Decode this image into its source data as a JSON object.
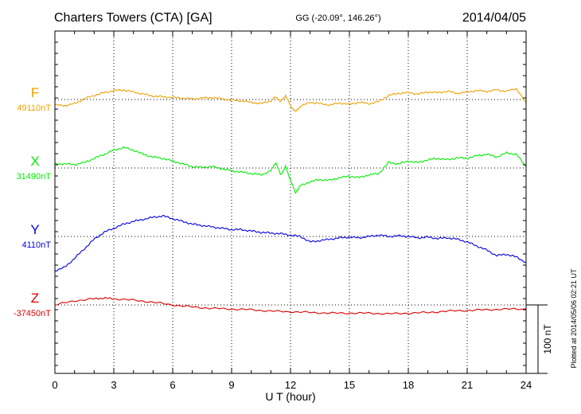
{
  "header": {
    "station": "Charters Towers (CTA)  [GA]",
    "coords": "GG (-20.09°, 146.26°)",
    "date": "2014/04/05"
  },
  "footer": {
    "plotted": "Plotted at 2014/05/06 02:21  UT"
  },
  "chart_data": {
    "type": "line",
    "xlabel": "U T (hour)",
    "ylabel": "",
    "xlim": [
      0,
      24
    ],
    "xticks": [
      0,
      3,
      6,
      9,
      12,
      15,
      18,
      21,
      24
    ],
    "tick_labels": [
      "0",
      "3",
      "6",
      "9",
      "12",
      "15",
      "18",
      "21",
      "24"
    ],
    "grid": true,
    "scale_bar_label": "100 nT",
    "scale_nT": 100,
    "series": [
      {
        "name": "F",
        "baseline_label": "49110nT",
        "baseline_nT": 49110,
        "color": "#f0a000",
        "x": [
          0,
          0.5,
          1,
          1.5,
          2,
          2.5,
          3,
          3.5,
          4,
          4.5,
          5,
          5.5,
          6,
          6.5,
          7,
          7.5,
          8,
          8.5,
          9,
          9.5,
          10,
          10.5,
          11,
          11.25,
          11.5,
          11.75,
          12,
          12.25,
          12.5,
          13,
          13.5,
          14,
          14.5,
          15,
          15.5,
          16,
          16.5,
          17,
          17.5,
          18,
          18.5,
          19,
          19.5,
          20,
          20.5,
          21,
          21.5,
          22,
          22.5,
          23,
          23.5,
          24
        ],
        "y": [
          -8,
          -9,
          -6,
          1,
          6,
          10,
          13,
          14,
          11,
          8,
          5,
          4,
          3,
          2,
          1,
          2,
          3,
          1,
          -1,
          -2,
          -4,
          -6,
          -2,
          4,
          -3,
          6,
          -9,
          -18,
          -10,
          -4,
          -6,
          -8,
          -5,
          -7,
          -4,
          -6,
          -3,
          6,
          9,
          10,
          8,
          11,
          10,
          12,
          9,
          11,
          13,
          12,
          14,
          12,
          16,
          -5
        ]
      },
      {
        "name": "X",
        "baseline_label": "31490nT",
        "baseline_nT": 31490,
        "color": "#00ee00",
        "x": [
          0,
          0.5,
          1,
          1.5,
          2,
          2.5,
          3,
          3.5,
          4,
          4.5,
          5,
          5.5,
          6,
          6.5,
          7,
          7.5,
          8,
          8.5,
          9,
          9.5,
          10,
          10.5,
          11,
          11.25,
          11.5,
          11.75,
          12,
          12.25,
          12.5,
          13,
          13.5,
          14,
          14.5,
          15,
          15.5,
          16,
          16.5,
          17,
          17.5,
          18,
          18.5,
          19,
          19.5,
          20,
          20.5,
          21,
          21.5,
          22,
          22.5,
          23,
          23.5,
          24
        ],
        "y": [
          6,
          6,
          5,
          8,
          14,
          20,
          26,
          30,
          26,
          20,
          16,
          14,
          10,
          6,
          2,
          1,
          2,
          -1,
          -4,
          -6,
          -8,
          -10,
          -4,
          8,
          -10,
          2,
          -18,
          -36,
          -26,
          -20,
          -17,
          -18,
          -14,
          -12,
          -14,
          -10,
          -8,
          8,
          6,
          10,
          8,
          12,
          14,
          12,
          15,
          14,
          18,
          20,
          16,
          22,
          20,
          2
        ]
      },
      {
        "name": "Y",
        "baseline_label": "4110nT",
        "baseline_nT": 4110,
        "color": "#0000dd",
        "x": [
          0,
          0.5,
          1,
          1.5,
          2,
          2.5,
          3,
          3.5,
          4,
          4.5,
          5,
          5.5,
          6,
          6.5,
          7,
          7.5,
          8,
          8.5,
          9,
          9.5,
          10,
          10.5,
          11,
          11.5,
          12,
          12.5,
          13,
          13.5,
          14,
          14.5,
          15,
          15.5,
          16,
          16.5,
          17,
          17.5,
          18,
          18.5,
          19,
          19.5,
          20,
          20.5,
          21,
          21.5,
          22,
          22.5,
          23,
          23.5,
          24
        ],
        "y": [
          -50,
          -45,
          -32,
          -18,
          -4,
          6,
          12,
          18,
          22,
          25,
          28,
          30,
          26,
          22,
          18,
          16,
          14,
          12,
          10,
          10,
          8,
          6,
          5,
          4,
          2,
          0,
          -8,
          -6,
          -4,
          -2,
          -1,
          -2,
          0,
          2,
          0,
          1,
          0,
          -2,
          -1,
          -3,
          -2,
          -4,
          -8,
          -14,
          -20,
          -28,
          -26,
          -30,
          -38
        ]
      },
      {
        "name": "Z",
        "baseline_label": "-37450nT",
        "baseline_nT": -37450,
        "color": "#dd0000",
        "x": [
          0,
          1,
          2,
          2.5,
          3,
          4,
          5,
          6,
          7,
          8,
          9,
          10,
          11,
          12,
          13,
          14,
          15,
          16,
          17,
          18,
          19,
          20,
          21,
          22,
          23,
          24
        ],
        "y": [
          0,
          6,
          9,
          10,
          9,
          7,
          4,
          0,
          -3,
          -5,
          -6,
          -7,
          -9,
          -10,
          -11,
          -12,
          -12,
          -12,
          -13,
          -12,
          -11,
          -9,
          -8,
          -7,
          -6,
          -6
        ]
      }
    ]
  }
}
